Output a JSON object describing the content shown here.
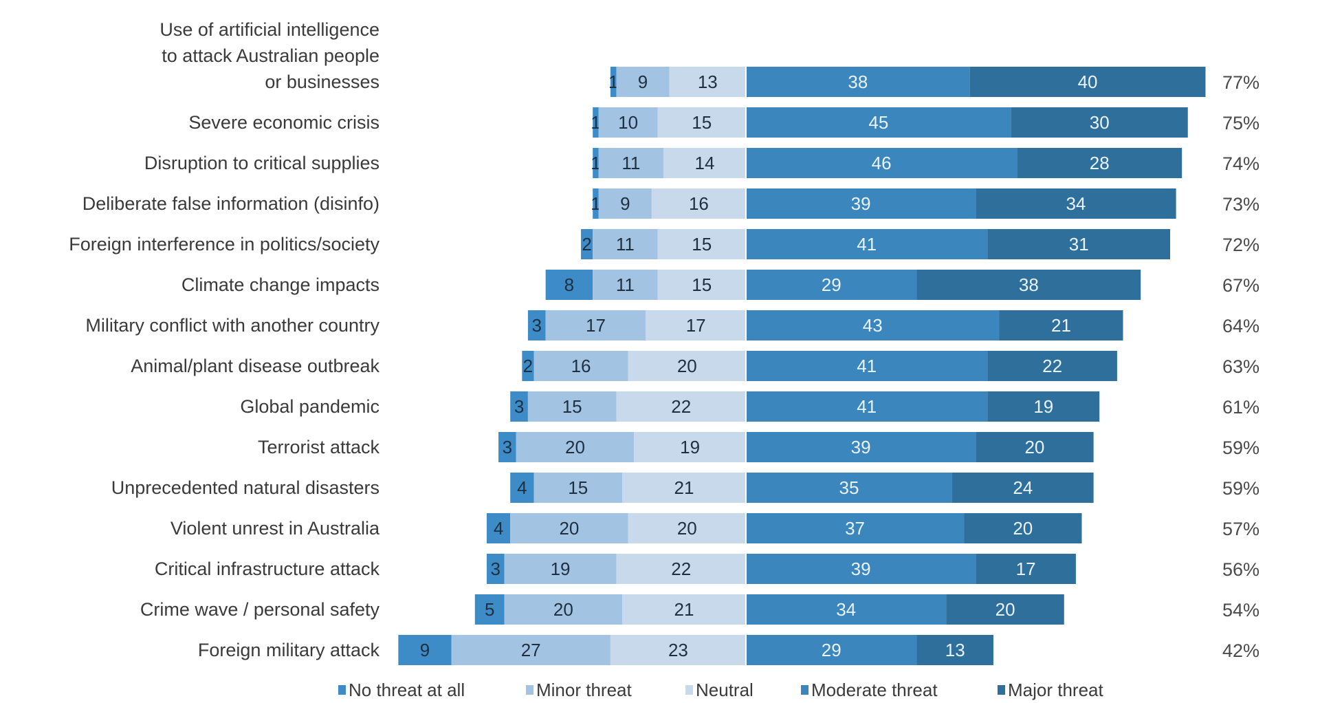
{
  "chart_data": {
    "type": "bar",
    "subtype": "diverging-stacked-horizontal",
    "categories": [
      [
        "Use of artificial intelligence",
        "to attack Australian people",
        "or businesses"
      ],
      [
        "Severe economic crisis"
      ],
      [
        "Disruption to critical supplies"
      ],
      [
        "Deliberate false information (disinfo)"
      ],
      [
        "Foreign interference in politics/society"
      ],
      [
        "Climate change impacts"
      ],
      [
        "Military conflict with another country"
      ],
      [
        "Animal/plant disease outbreak"
      ],
      [
        "Global pandemic"
      ],
      [
        "Terrorist attack"
      ],
      [
        "Unprecedented natural disasters"
      ],
      [
        "Violent unrest in Australia"
      ],
      [
        "Critical infrastructure attack"
      ],
      [
        "Crime wave / personal safety"
      ],
      [
        "Foreign military attack"
      ]
    ],
    "series": [
      {
        "name": "No threat at all",
        "color": "#3d8cc8",
        "side": "left",
        "values": [
          1,
          1,
          1,
          1,
          2,
          8,
          3,
          2,
          3,
          3,
          4,
          4,
          3,
          5,
          9
        ]
      },
      {
        "name": "Minor threat",
        "color": "#a3c3e3",
        "side": "left",
        "values": [
          9,
          10,
          11,
          9,
          11,
          11,
          17,
          16,
          15,
          20,
          15,
          20,
          19,
          20,
          27
        ]
      },
      {
        "name": "Neutral",
        "color": "#c9d9ec",
        "side": "left",
        "values": [
          13,
          15,
          14,
          16,
          15,
          15,
          17,
          20,
          22,
          19,
          21,
          20,
          22,
          21,
          23
        ]
      },
      {
        "name": "Moderate threat",
        "color": "#3b86bc",
        "side": "right",
        "values": [
          38,
          45,
          46,
          39,
          41,
          29,
          43,
          41,
          41,
          39,
          35,
          37,
          39,
          34,
          29
        ]
      },
      {
        "name": "Major threat",
        "color": "#2f6f9c",
        "side": "right",
        "values": [
          40,
          30,
          28,
          34,
          31,
          38,
          21,
          22,
          19,
          20,
          24,
          20,
          17,
          20,
          13
        ]
      }
    ],
    "totals": [
      "77%",
      "75%",
      "74%",
      "73%",
      "72%",
      "67%",
      "64%",
      "63%",
      "61%",
      "59%",
      "59%",
      "57%",
      "56%",
      "54%",
      "42%"
    ],
    "legend_position": "bottom",
    "grid": false
  }
}
